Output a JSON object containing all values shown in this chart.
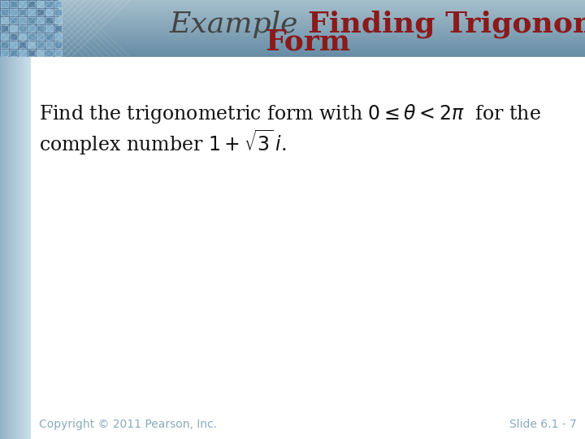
{
  "bg_color": "#ffffff",
  "left_bar_color_light": "#b8cdd8",
  "left_bar_color_dark": "#8aaabb",
  "top_bar_color": "#7a9fb5",
  "title_example": "Example ",
  "title_bold_line1": "Finding Trigonometric",
  "title_bold_line2": "Form",
  "title_color_normal": "#444444",
  "title_color_bold": "#8b1a1a",
  "title_fontsize": 26,
  "body_line1": "Find the trigonometric form with $0 \\leq \\theta < 2\\pi$  for the",
  "body_line2": "complex number $1 + \\sqrt{3}\\,i$.",
  "body_fontsize": 17,
  "body_color": "#111111",
  "copyright_text": "Copyright © 2011 Pearson, Inc.",
  "slide_text": "Slide 6.1 - 7",
  "footer_color": "#8aaabb",
  "footer_fontsize": 10
}
